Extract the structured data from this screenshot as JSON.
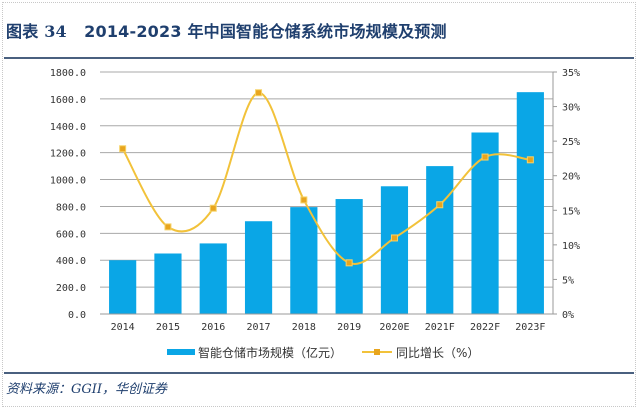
{
  "header": {
    "figure_label": "图表",
    "figure_number": "34",
    "title": "2014-2023 年中国智能仓储系统市场规模及预测"
  },
  "footer": {
    "source": "资料来源：GGII，华创证券"
  },
  "colors": {
    "bar": "#0aa6e6",
    "line": "#f2c23a",
    "marker": "#e8a51e",
    "grid": "#a8a8a8",
    "title": "#1f3f6e"
  },
  "chart_data": {
    "type": "bar",
    "title": "2014-2023 年中国智能仓储系统市场规模及预测",
    "categories": [
      "2014",
      "2015",
      "2016",
      "2017",
      "2018",
      "2019",
      "2020E",
      "2021F",
      "2022F",
      "2023F"
    ],
    "series": [
      {
        "name": "智能仓储市场规模（亿元）",
        "type": "bar",
        "axis": "left",
        "values": [
          400,
          450,
          525,
          690,
          795,
          855,
          950,
          1100,
          1350,
          1650
        ]
      },
      {
        "name": "同比增长（%）",
        "type": "line",
        "axis": "right",
        "smooth": true,
        "values": [
          23.9,
          12.6,
          15.3,
          32.0,
          16.5,
          7.4,
          11.0,
          15.8,
          22.7,
          22.3
        ]
      }
    ],
    "y_left": {
      "ylim": [
        0,
        1800
      ],
      "ticks": [
        "0.0",
        "200.0",
        "400.0",
        "600.0",
        "800.0",
        "1000.0",
        "1200.0",
        "1400.0",
        "1600.0",
        "1800.0"
      ]
    },
    "y_right": {
      "ylim": [
        0,
        35
      ],
      "ticks": [
        "0%",
        "5%",
        "10%",
        "15%",
        "20%",
        "25%",
        "30%",
        "35%"
      ]
    },
    "xlabel": "",
    "ylabel": "",
    "grid": true,
    "legend_position": "bottom-center"
  }
}
